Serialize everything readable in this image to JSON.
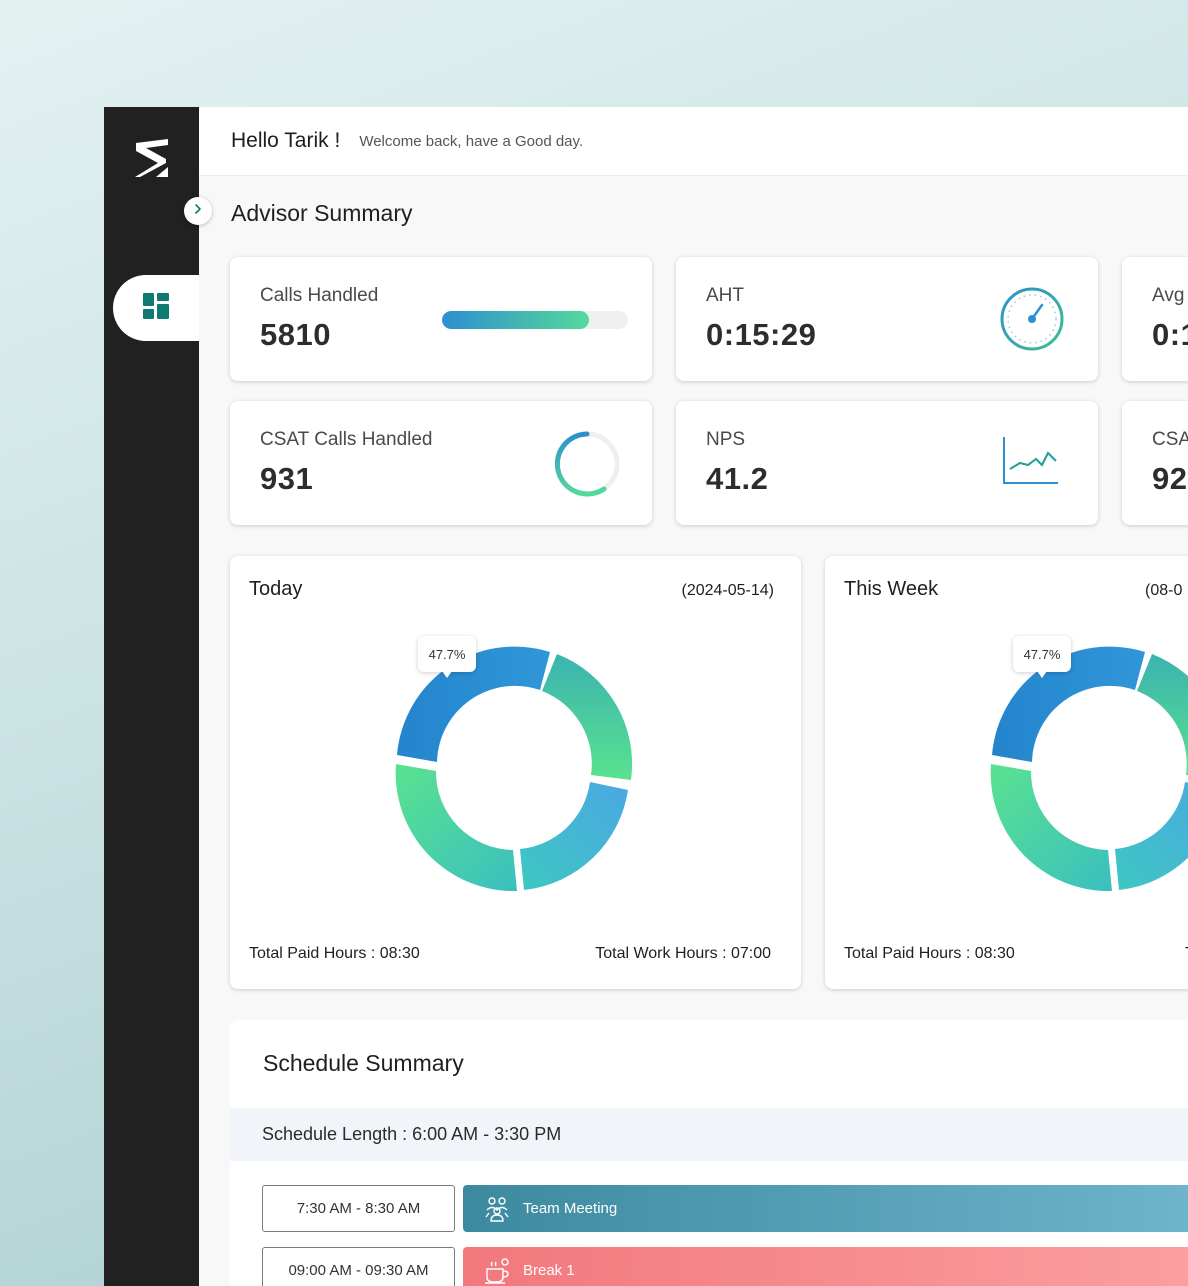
{
  "header": {
    "greeting": "Hello Tarik !",
    "welcome": "Welcome back, have a Good day."
  },
  "advisor_summary": {
    "title": "Advisor Summary",
    "kpis": [
      {
        "label": "Calls Handled",
        "value": "5810",
        "progress": 0.79,
        "icon": "progress-bar"
      },
      {
        "label": "AHT",
        "value": "0:15:29",
        "icon": "speedometer-icon"
      },
      {
        "label": "Avg",
        "value": "0:1",
        "icon": ""
      },
      {
        "label": "CSAT Calls Handled",
        "value": "931",
        "icon": "ring-progress-icon"
      },
      {
        "label": "NPS",
        "value": "41.2",
        "icon": "line-chart-icon"
      },
      {
        "label": "CSA",
        "value": "92",
        "icon": ""
      }
    ]
  },
  "today": {
    "title": "Today",
    "date": "(2024-05-14)",
    "tooltip": "47.7%",
    "total_paid": "Total Paid Hours : 08:30",
    "total_work": "Total Work Hours : 07:00"
  },
  "week": {
    "title": "This Week",
    "date": "(08-0",
    "tooltip": "47.7%",
    "total_paid": "Total Paid Hours : 08:30",
    "total_work": "T"
  },
  "schedule": {
    "title": "Schedule Summary",
    "length": "Schedule Length : 6:00 AM - 3:30 PM",
    "rows": [
      {
        "time": "7:30 AM - 8:30 AM",
        "event": "Team Meeting",
        "icon": "team-meeting-icon",
        "color_from": "#3c8aa0",
        "color_to": "#73b8cf"
      },
      {
        "time": "09:00 AM - 09:30 AM",
        "event": "Break 1",
        "icon": "coffee-icon",
        "color_from": "#f2787d",
        "color_to": "#fba2a3"
      }
    ]
  },
  "colors": {
    "sidebar": "#212121",
    "accent": "#0f7a73",
    "blue": "#2d8fcf",
    "green": "#55d99a"
  }
}
